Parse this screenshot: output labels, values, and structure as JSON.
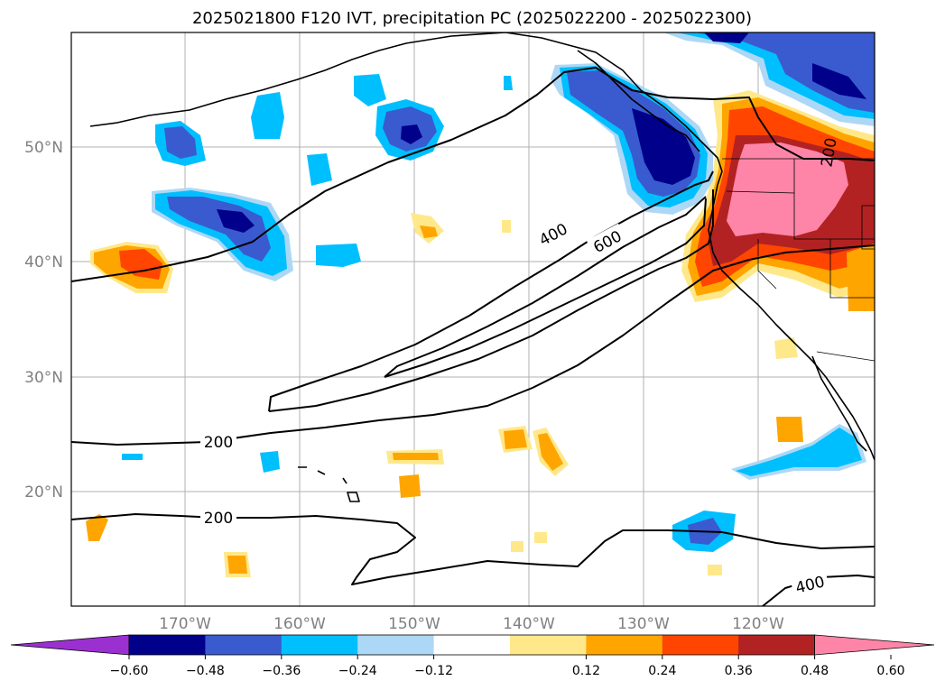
{
  "title": "2025021800 F120 IVT, precipitation PC (2025022200 - 2025022300)",
  "lon_ticks": [
    "170°W",
    "160°W",
    "150°W",
    "140°W",
    "130°W",
    "120°W"
  ],
  "lat_ticks": [
    "50°N",
    "40°N",
    "30°N",
    "20°N"
  ],
  "colorbar": {
    "ticks": [
      "−0.60",
      "−0.48",
      "−0.36",
      "−0.24",
      "−0.12",
      "0.12",
      "0.24",
      "0.36",
      "0.48",
      "0.60"
    ],
    "colors": [
      "#9b30d0",
      "#00008b",
      "#3a5bcf",
      "#00bfff",
      "#add8f5",
      "#ffffff",
      "#ffe88a",
      "#ffa500",
      "#ff4500",
      "#b22222",
      "#ff85a8"
    ]
  },
  "contour_labels": {
    "c200a": "200",
    "c200b": "200",
    "c400a": "400",
    "c600": "600",
    "c400b": "400",
    "c200c": "200"
  }
}
